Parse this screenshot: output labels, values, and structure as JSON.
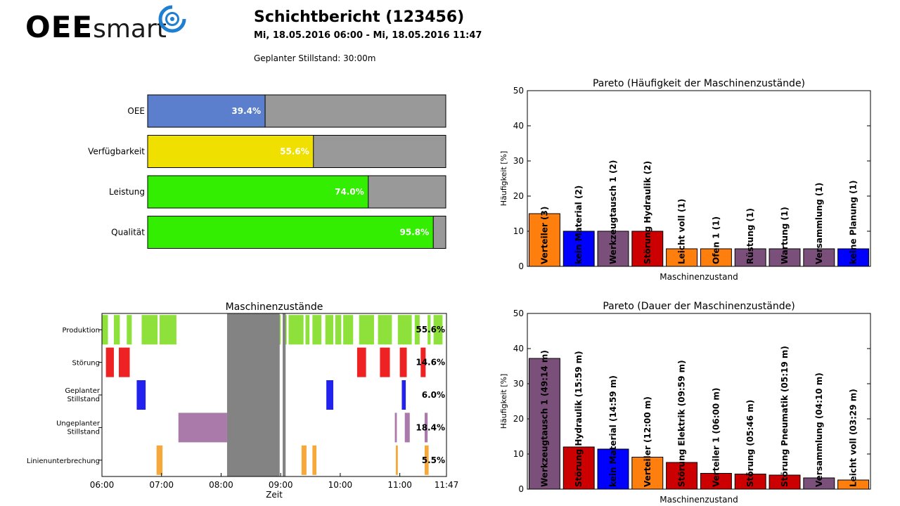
{
  "header": {
    "logo_bold": "OEE",
    "logo_light": "smart",
    "title": "Schichtbericht (123456)",
    "range": "Mi, 18.05.2016 06:00 - Mi, 18.05.2016 11:47",
    "planned_downtime": "Geplanter Stillstand: 30:00m"
  },
  "colors": {
    "oee": "#5b7fcc",
    "availability": "#f0e000",
    "performance_quality": "#33ee00",
    "remainder": "#999999",
    "orange": "#ff7f0e",
    "blue": "#0000ff",
    "purple": "#7a4f7a",
    "red": "#cc0000",
    "production": "#8ee03a",
    "fault": "#ee2222",
    "planned": "#2222ee",
    "unplanned": "#aa7aaa",
    "line_break": "#f7a83a",
    "gray_block": "#838383"
  },
  "chart_data": [
    {
      "type": "bar",
      "orientation": "horizontal",
      "categories": [
        "OEE",
        "Verfügbarkeit",
        "Leistung",
        "Qualität"
      ],
      "values": [
        39.4,
        55.6,
        74.0,
        95.8
      ],
      "labels": [
        "39.4%",
        "55.6%",
        "74.0%",
        "95.8%"
      ],
      "xlim": [
        0,
        100
      ]
    },
    {
      "type": "bar",
      "title": "Pareto (Häufigkeit der Maschinenzustände)",
      "xlabel": "Maschinenzustand",
      "ylabel": "Häufigkeit [%]",
      "ylim": [
        0,
        50
      ],
      "yticks": [
        "0",
        "10",
        "20",
        "30",
        "40",
        "50"
      ],
      "grid": false,
      "categories": [
        "Verteiler (3)",
        "kein Material (2)",
        "Werkzeugtausch 1 (2)",
        "Störung Hydraulik (2)",
        "Leicht voll (1)",
        "Ofen 1 (1)",
        "Rüstung (1)",
        "Wartung (1)",
        "Versammlung (1)",
        "keine Planung (1)"
      ],
      "values": [
        15,
        10,
        10,
        10,
        5,
        5,
        5,
        5,
        5,
        5
      ],
      "bar_colors": [
        "orange",
        "blue",
        "purple",
        "red",
        "orange",
        "orange",
        "purple",
        "purple",
        "purple",
        "blue"
      ]
    },
    {
      "type": "timeline",
      "title": "Maschinenzustände",
      "xlabel": "Zeit",
      "xticks": [
        "06:00",
        "07:00",
        "08:00",
        "09:00",
        "10:00",
        "11:00",
        "11:47"
      ],
      "x_range": [
        "06:00",
        "11:47"
      ],
      "rows": [
        {
          "name": "Produktion",
          "pct": "55.6%",
          "color": "production",
          "segments": [
            [
              "06:00",
              "06:06"
            ],
            [
              "06:12",
              "06:18"
            ],
            [
              "06:25",
              "06:30"
            ],
            [
              "06:40",
              "06:56"
            ],
            [
              "06:58",
              "07:15"
            ],
            [
              "08:53",
              "09:00"
            ],
            [
              "09:02",
              "09:06"
            ],
            [
              "09:08",
              "09:23"
            ],
            [
              "09:25",
              "09:29"
            ],
            [
              "09:32",
              "09:41"
            ],
            [
              "09:45",
              "09:53"
            ],
            [
              "09:55",
              "10:01"
            ],
            [
              "10:03",
              "10:13"
            ],
            [
              "10:19",
              "10:34"
            ],
            [
              "10:38",
              "10:52"
            ],
            [
              "10:58",
              "11:12"
            ],
            [
              "11:15",
              "11:20"
            ],
            [
              "11:28",
              "11:31"
            ],
            [
              "11:34",
              "11:43"
            ]
          ]
        },
        {
          "name": "Störung",
          "pct": "14.6%",
          "color": "fault",
          "segments": [
            [
              "06:04",
              "06:12"
            ],
            [
              "06:17",
              "06:28"
            ],
            [
              "10:17",
              "10:26"
            ],
            [
              "10:40",
              "10:50"
            ],
            [
              "11:00",
              "11:07"
            ],
            [
              "11:21",
              "11:26"
            ]
          ]
        },
        {
          "name": "Geplanter Stillstand",
          "pct": "6.0%",
          "color": "planned",
          "segments": [
            [
              "06:35",
              "06:44"
            ],
            [
              "09:46",
              "09:53"
            ],
            [
              "11:02",
              "11:06"
            ]
          ]
        },
        {
          "name": "Ungeplanter Stillstand",
          "pct": "18.4%",
          "color": "unplanned",
          "segments": [
            [
              "07:17",
              "08:06"
            ],
            [
              "10:55",
              "10:57"
            ],
            [
              "11:05",
              "11:10"
            ],
            [
              "11:25",
              "11:28"
            ]
          ]
        },
        {
          "name": "Linienunterbrechung",
          "pct": "5.5%",
          "color": "line_break",
          "segments": [
            [
              "06:55",
              "07:01"
            ],
            [
              "09:21",
              "09:26"
            ],
            [
              "09:32",
              "09:36"
            ],
            [
              "10:56",
              "10:58"
            ],
            [
              "11:25",
              "11:29"
            ]
          ]
        }
      ],
      "gray_blocks": [
        [
          "08:06",
          "08:59"
        ],
        [
          "09:02",
          "09:05"
        ]
      ]
    },
    {
      "type": "bar",
      "title": "Pareto (Dauer der Maschinenzustände)",
      "xlabel": "Maschinenzustand",
      "ylabel": "Häufigkeit [%]",
      "ylim": [
        0,
        50
      ],
      "yticks": [
        "0",
        "10",
        "20",
        "30",
        "40",
        "50"
      ],
      "grid": false,
      "categories": [
        "Werkzeugtausch 1 (49:14 m)",
        "Störung Hydraulik (15:59 m)",
        "kein Material (14:59 m)",
        "Verteiler (12:00 m)",
        "Störung Elektrik (09:59 m)",
        "Verteiler 1 (06:00 m)",
        "Störung (05:46 m)",
        "Störung Pneumatik (05:19 m)",
        "Versammlung (04:10 m)",
        "Leicht voll (03:29 m)"
      ],
      "values": [
        37.2,
        12.0,
        11.4,
        9.1,
        7.6,
        4.5,
        4.3,
        4.0,
        3.2,
        2.6
      ],
      "bar_colors": [
        "purple",
        "red",
        "blue",
        "orange",
        "red",
        "red",
        "red",
        "red",
        "purple",
        "orange"
      ]
    }
  ]
}
